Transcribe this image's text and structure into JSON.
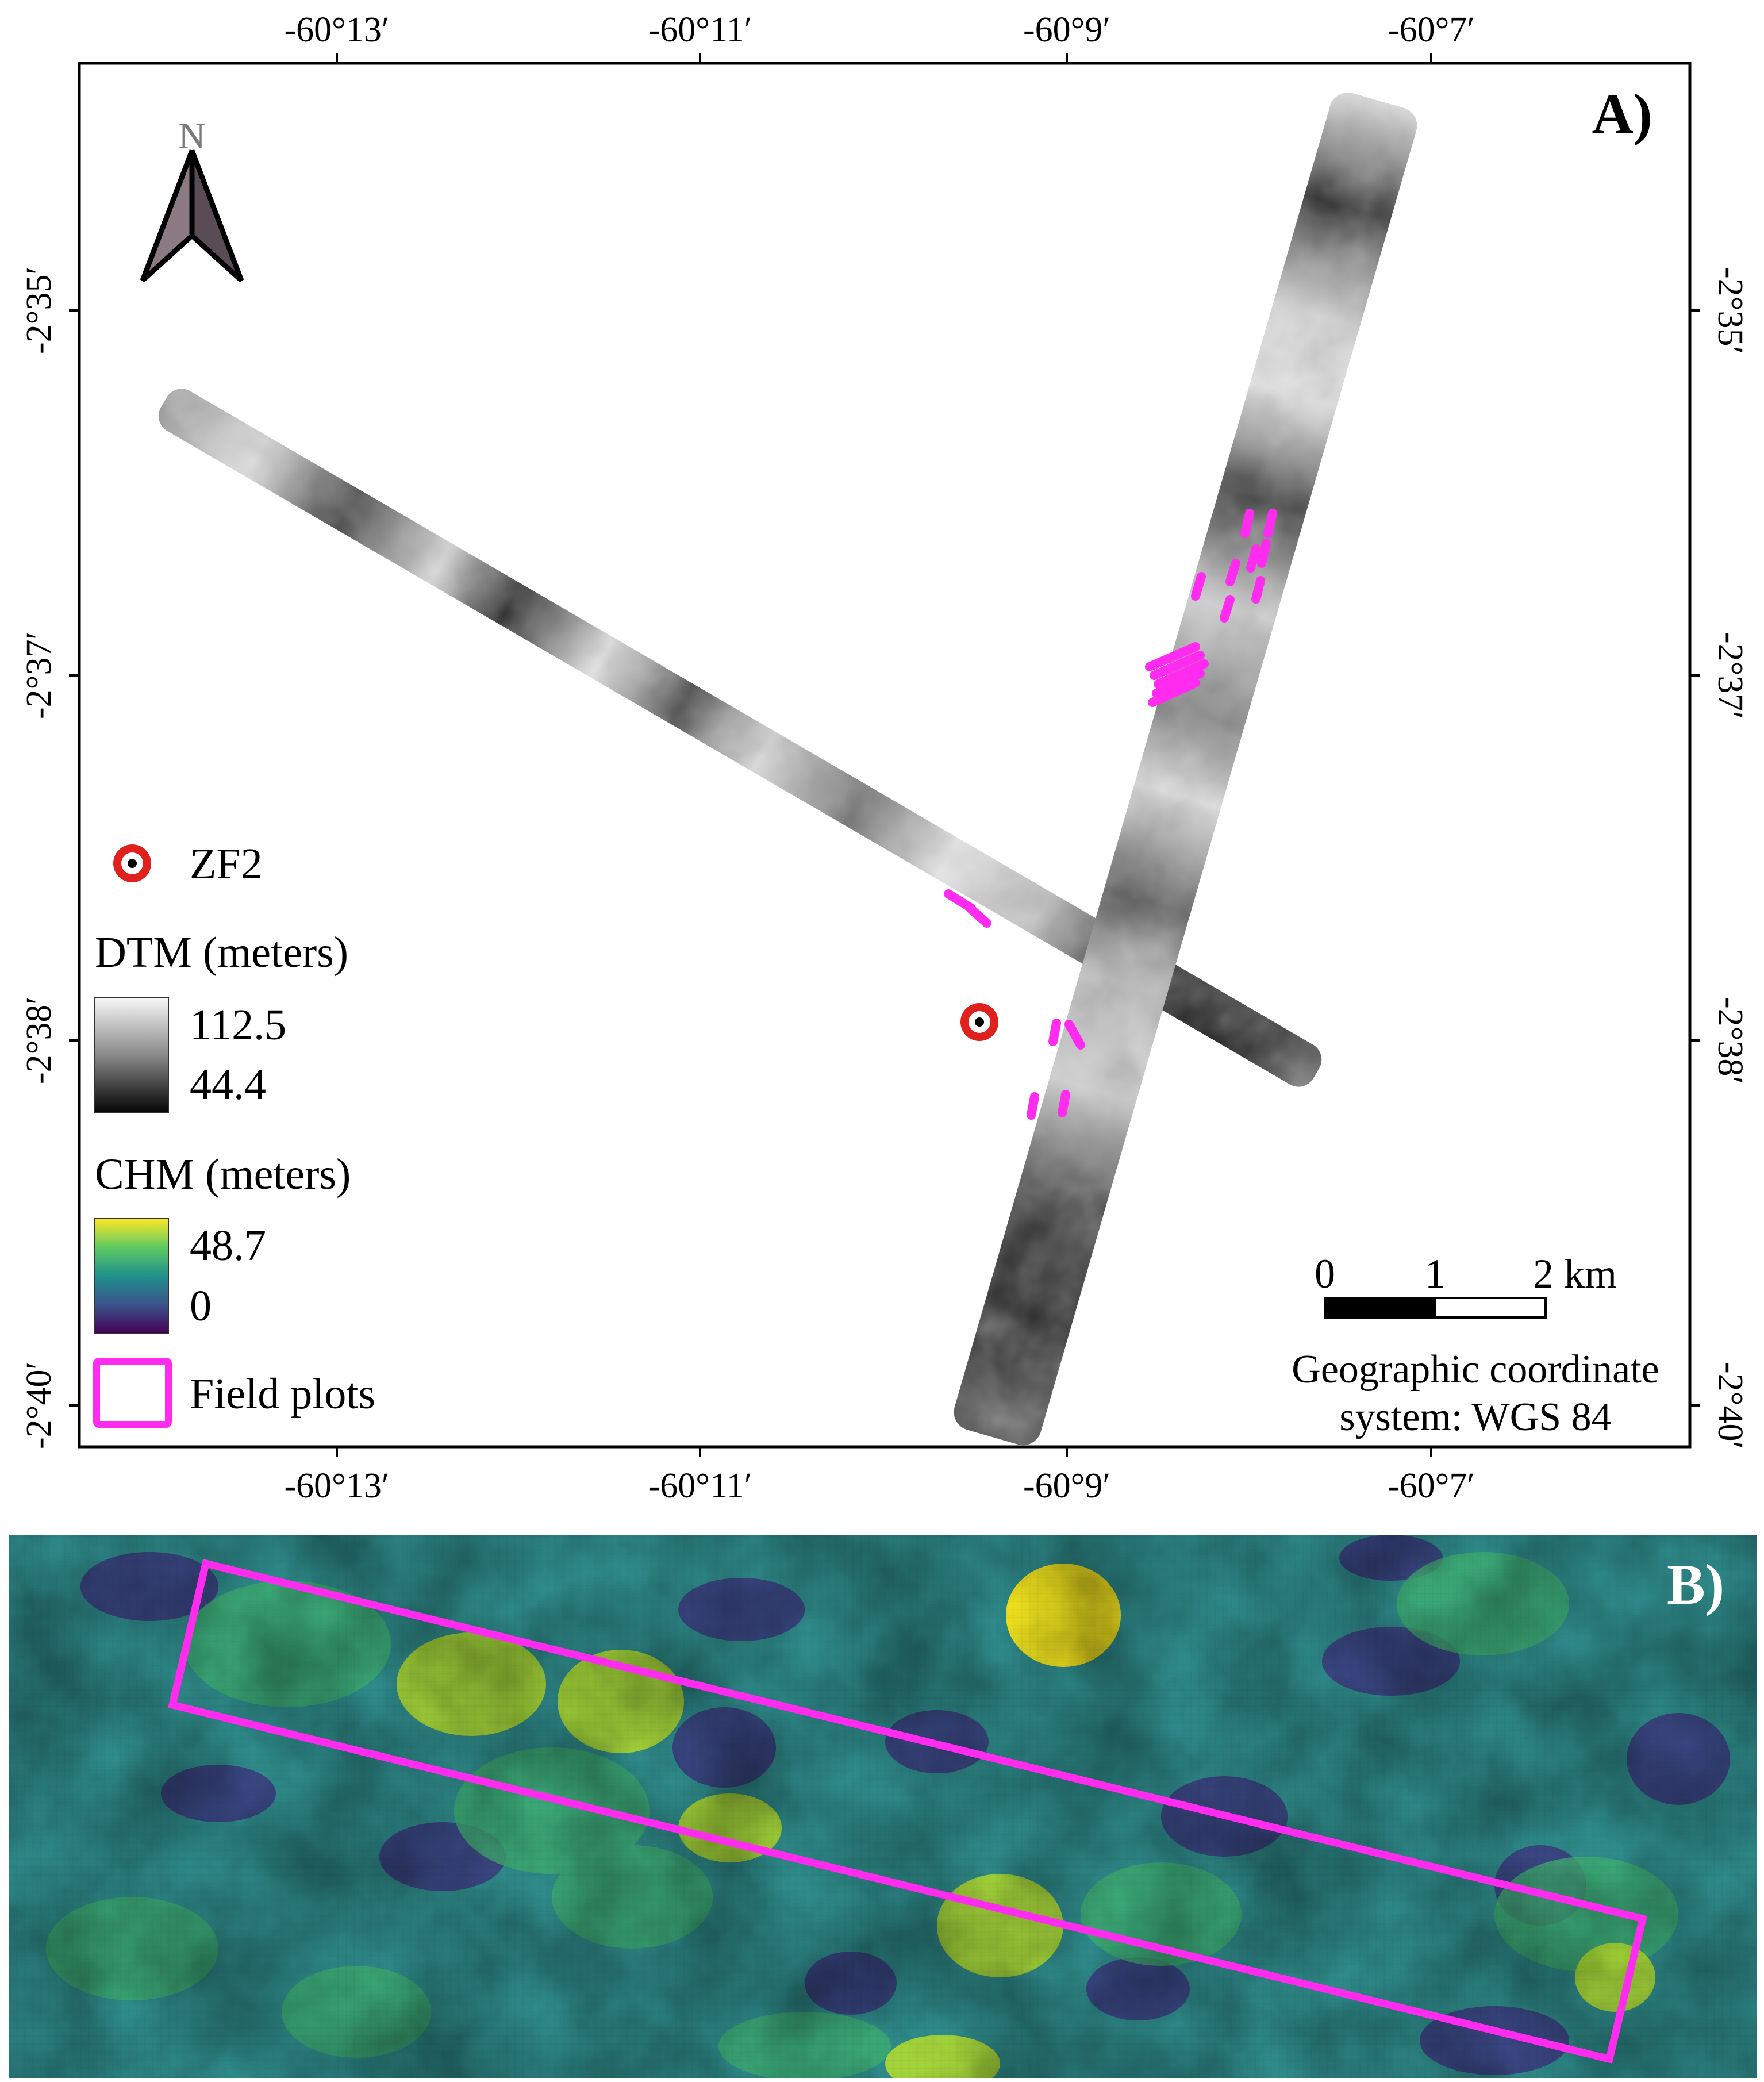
{
  "panel_a": {
    "label": "A)",
    "north_label": "N",
    "lon_ticks": [
      "-60°13′",
      "-60°11′",
      "-60°9′",
      "-60°7′"
    ],
    "lat_ticks": [
      "-2°35′",
      "-2°37′",
      "-2°38′",
      "-2°40′"
    ],
    "legend": {
      "site_label": "ZF2",
      "dtm_title": "DTM (meters)",
      "dtm_max": "112.5",
      "dtm_min": "44.4",
      "chm_title": "CHM (meters)",
      "chm_max": "48.7",
      "chm_min": "0",
      "plots_label": "Field plots"
    },
    "scale_bar": {
      "labels": [
        "0",
        "1",
        "2 km"
      ]
    },
    "crs_note": [
      "Geographic coordinate",
      "system: WGS 84"
    ],
    "colors": {
      "site_marker": "#e0201c",
      "field_plot": "#ff2cf0",
      "dtm_high": "#f2f2f2",
      "dtm_low": "#111111"
    }
  },
  "panel_b": {
    "label": "B)",
    "colors": {
      "chm_high": "#fde725",
      "chm_mid": "#21918c",
      "chm_low": "#440154",
      "field_plot": "#ff2cf0"
    }
  }
}
